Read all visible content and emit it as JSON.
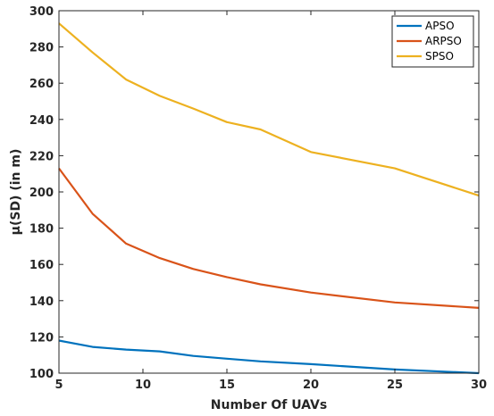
{
  "chart_data": {
    "type": "line",
    "title": "",
    "xlabel": "Number Of UAVs",
    "ylabel": "μ(SD) (in m)",
    "xlim": [
      5,
      30
    ],
    "ylim": [
      100,
      300
    ],
    "xticks": [
      5,
      10,
      15,
      20,
      25,
      30
    ],
    "yticks": [
      100,
      120,
      140,
      160,
      180,
      200,
      220,
      240,
      260,
      280,
      300
    ],
    "grid": false,
    "legend_position": "top-right",
    "series": [
      {
        "name": "APSO",
        "color": "#0072BD",
        "x": [
          5,
          7,
          9,
          11,
          13,
          15,
          17,
          20,
          25,
          30
        ],
        "values": [
          118,
          114.5,
          113,
          112,
          109.5,
          108,
          106.5,
          105,
          102,
          100
        ]
      },
      {
        "name": "ARPSO",
        "color": "#D95319",
        "x": [
          5,
          7,
          9,
          11,
          13,
          15,
          17,
          20,
          25,
          30
        ],
        "values": [
          213,
          188,
          171.5,
          163.5,
          157.5,
          153,
          149,
          144.5,
          139,
          136
        ]
      },
      {
        "name": "SPSO",
        "color": "#EDB120",
        "x": [
          5,
          7,
          9,
          11,
          13,
          15,
          17,
          20,
          25,
          30
        ],
        "values": [
          293,
          277,
          262,
          253,
          246,
          238.5,
          234.5,
          222,
          213,
          198
        ]
      }
    ]
  }
}
